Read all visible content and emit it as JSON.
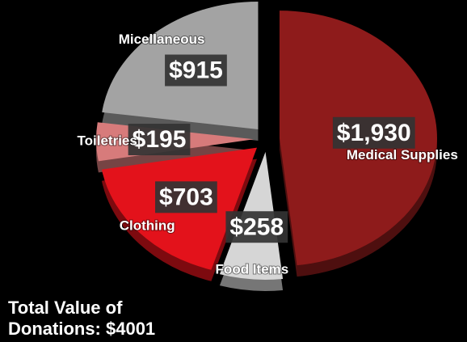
{
  "chart_data": {
    "type": "pie",
    "categories": [
      "Medical Supplies",
      "Food Items",
      "Clothing",
      "Toiletries",
      "Micellaneous"
    ],
    "values": [
      1930,
      258,
      703,
      195,
      915
    ],
    "value_labels": [
      "$1,930",
      "$258",
      "$703",
      "$195",
      "$915"
    ],
    "colors": [
      "#8e1b1b",
      "#d6d6d6",
      "#e3121b",
      "#d77b7b",
      "#a3a3a3"
    ],
    "annotation": [
      "Total Value of",
      "Donations: $4001"
    ]
  }
}
